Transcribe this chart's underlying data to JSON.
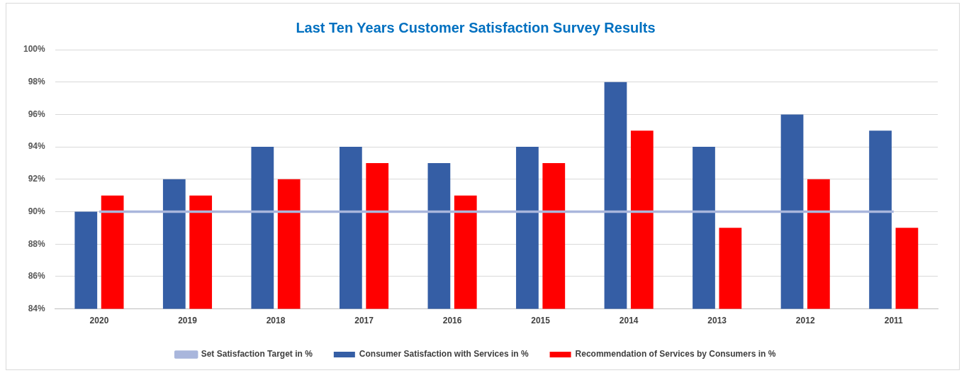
{
  "chart_data": {
    "type": "bar",
    "title": "Last Ten Years Customer Satisfaction Survey Results",
    "categories": [
      "2020",
      "2019",
      "2018",
      "2017",
      "2016",
      "2015",
      "2014",
      "2013",
      "2012",
      "2011"
    ],
    "series": [
      {
        "name": "Consumer Satisfaction with Services in %",
        "color": "#355ea5",
        "values": [
          90,
          92,
          94,
          94,
          93,
          94,
          98,
          94,
          96,
          95
        ]
      },
      {
        "name": "Recommendation of Services by Consumers in %",
        "color": "#ff0000",
        "values": [
          91,
          91,
          92,
          93,
          91,
          93,
          95,
          89,
          92,
          89
        ]
      },
      {
        "name": "Set Satisfaction Target in %",
        "type": "line",
        "color": "#a9b6dc",
        "values": [
          90,
          90,
          90,
          90,
          90,
          90,
          90,
          90,
          90,
          90
        ]
      }
    ],
    "ylim": [
      84,
      100
    ],
    "yticks": [
      {
        "value": 84,
        "label": "84%"
      },
      {
        "value": 86,
        "label": "86%"
      },
      {
        "value": 88,
        "label": "88%"
      },
      {
        "value": 90,
        "label": "90%"
      },
      {
        "value": 92,
        "label": "92%"
      },
      {
        "value": 94,
        "label": "94%"
      },
      {
        "value": 96,
        "label": "96%"
      },
      {
        "value": 98,
        "label": "98%"
      },
      {
        "value": 100,
        "label": "100%"
      }
    ],
    "grid": "y",
    "legend": "bottom"
  }
}
